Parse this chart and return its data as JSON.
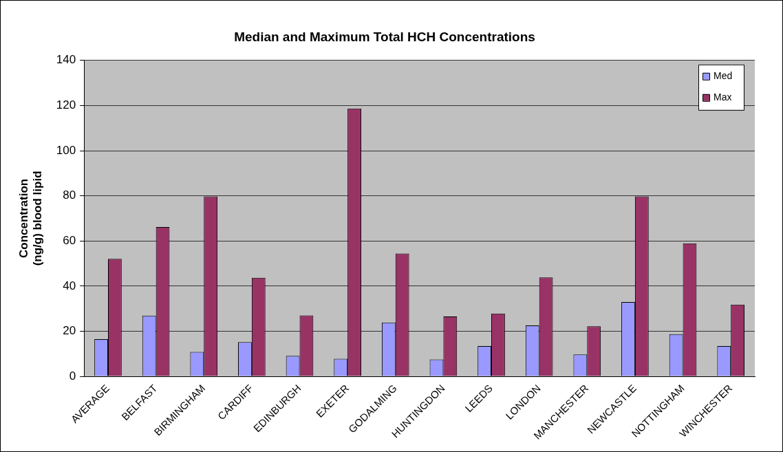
{
  "chart_data": {
    "type": "bar",
    "title": "Median and Maximum Total HCH Concentrations",
    "ylabel": "Concentration (ng/g) blood lipid",
    "categories": [
      "AVERAGE",
      "BELFAST",
      "BIRMINGHAM",
      "CARDIFF",
      "EDINBURGH",
      "EXETER",
      "GODALMING",
      "HUNTINGDON",
      "LEEDS",
      "LONDON",
      "MANCHESTER",
      "NEWCASTLE",
      "NOTTINGHAM",
      "WINCHESTER"
    ],
    "series": [
      {
        "name": "Med",
        "color": "#9999ff",
        "values": [
          16.5,
          26.9,
          10.8,
          15.2,
          9.1,
          7.8,
          23.9,
          7.5,
          13.4,
          22.6,
          9.7,
          32.9,
          18.7,
          13.4
        ]
      },
      {
        "name": "Max",
        "color": "#993366",
        "values": [
          52.1,
          66.2,
          79.7,
          43.7,
          27,
          118.7,
          54.4,
          26.5,
          27.8,
          43.8,
          22.2,
          79.7,
          58.9,
          31.8
        ]
      }
    ],
    "ylim": [
      0,
      140
    ],
    "yticks": [
      0,
      20,
      40,
      60,
      80,
      100,
      120,
      140
    ],
    "grid": "y",
    "legend": "top right"
  }
}
